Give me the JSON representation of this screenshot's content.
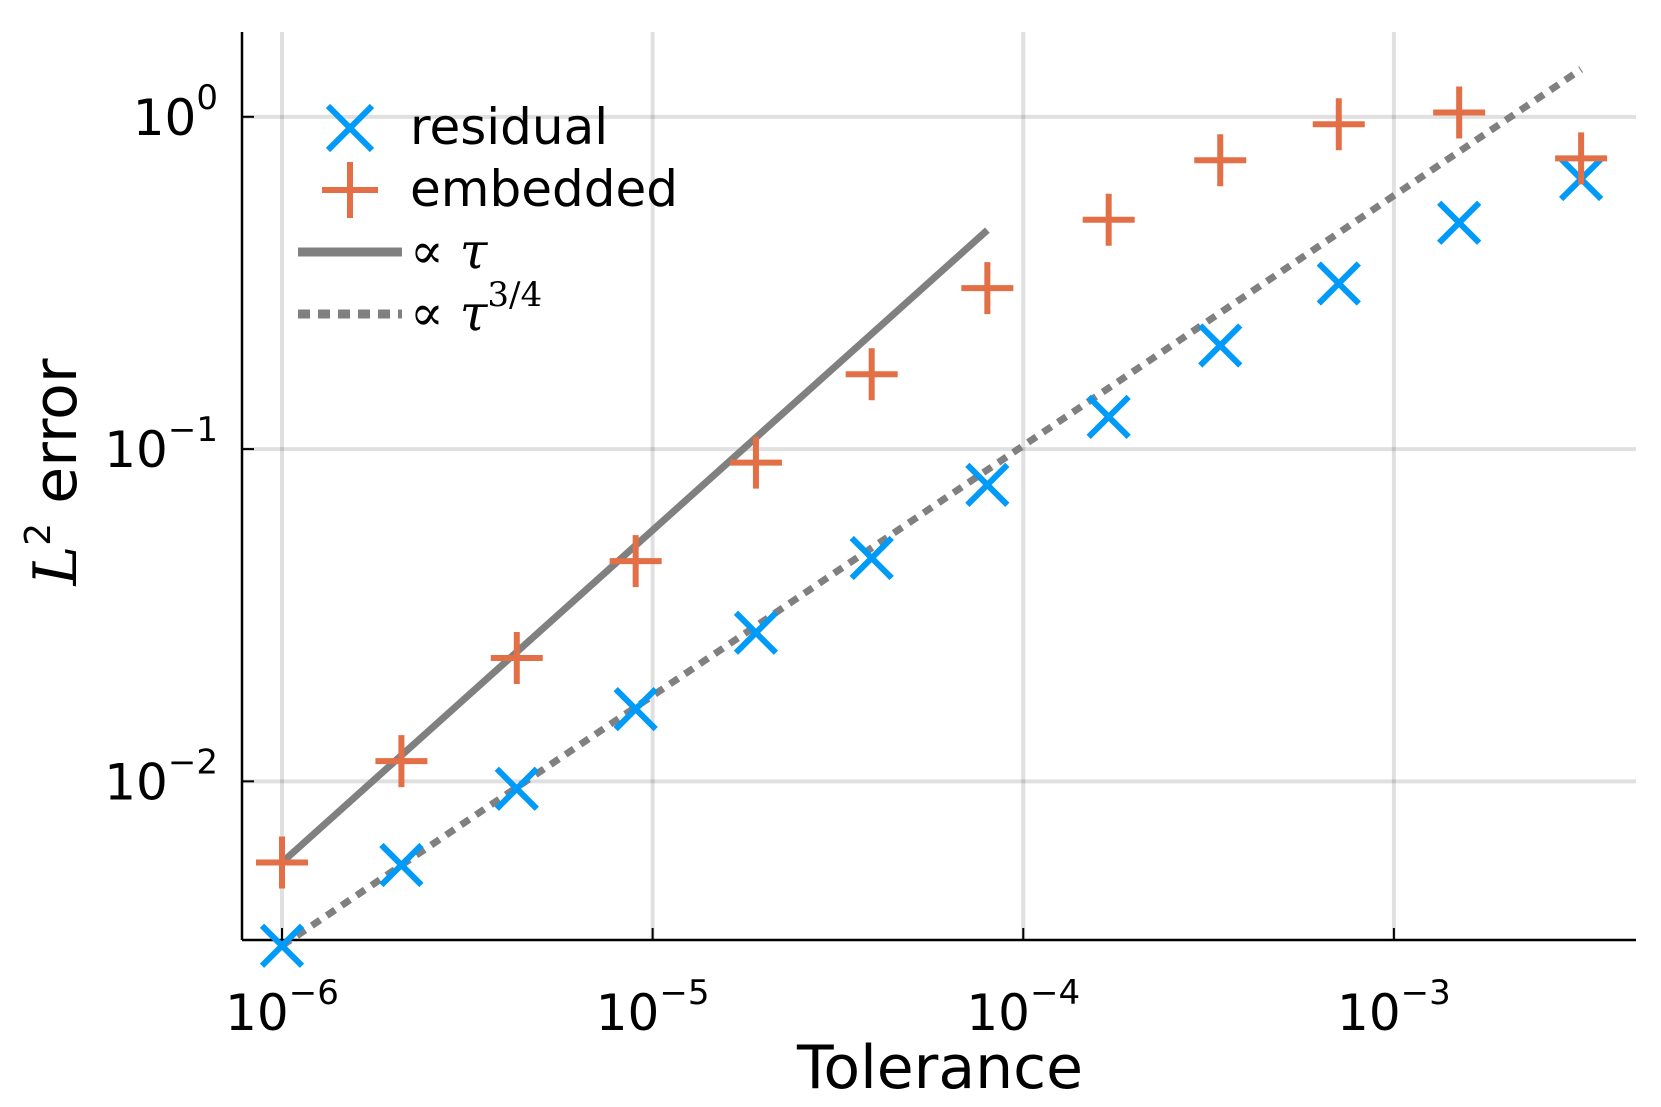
{
  "chart_data": {
    "type": "scatter",
    "x_scale": "log",
    "y_scale": "log",
    "xlabel": "Tolerance",
    "ylabel": {
      "base": "L",
      "sup": "2",
      "rest": " error"
    },
    "xlim": [
      7.8e-07,
      0.0045
    ],
    "ylim": [
      0.00333,
      1.8
    ],
    "grid": true,
    "legend_position": "top-left",
    "x_ticks": [
      {
        "value": 1e-06,
        "base": "10",
        "exp": "−6"
      },
      {
        "value": 1e-05,
        "base": "10",
        "exp": "−5"
      },
      {
        "value": 0.0001,
        "base": "10",
        "exp": "−4"
      },
      {
        "value": 0.001,
        "base": "10",
        "exp": "−3"
      }
    ],
    "y_ticks": [
      {
        "value": 0.01,
        "base": "10",
        "exp": "−2"
      },
      {
        "value": 0.1,
        "base": "10",
        "exp": "−1"
      },
      {
        "value": 1,
        "base": "10",
        "exp": "0"
      }
    ],
    "series": [
      {
        "name": "residual",
        "marker": "x",
        "color": "#009af9",
        "x": [
          1e-06,
          2.1e-06,
          4.3e-06,
          9e-06,
          1.9e-05,
          3.9e-05,
          8e-05,
          0.00017,
          0.00034,
          0.00071,
          0.0015,
          0.0032
        ],
        "y": [
          0.0032,
          0.0056,
          0.0095,
          0.0165,
          0.028,
          0.047,
          0.078,
          0.125,
          0.205,
          0.315,
          0.48,
          0.65
        ]
      },
      {
        "name": "embedded",
        "marker": "+",
        "color": "#e26f46",
        "x": [
          1e-06,
          2.1e-06,
          4.3e-06,
          9e-06,
          1.9e-05,
          3.9e-05,
          8e-05,
          0.00017,
          0.00034,
          0.00071,
          0.0015,
          0.0032
        ],
        "y": [
          0.0057,
          0.0115,
          0.0235,
          0.046,
          0.091,
          0.168,
          0.305,
          0.49,
          0.74,
          0.95,
          1.03,
          0.75
        ]
      },
      {
        "name": "∝ τ",
        "line_style": "solid",
        "color": "#808080",
        "x": [
          1e-06,
          8e-05
        ],
        "y": [
          0.0057,
          0.456
        ]
      },
      {
        "name": "∝ τ^(3/4)",
        "line_style": "dotted",
        "color": "#808080",
        "x": [
          1e-06,
          0.0032
        ],
        "y": [
          0.0032,
          1.39
        ]
      }
    ],
    "legend": [
      {
        "label": "residual",
        "marker": "x",
        "color": "#009af9"
      },
      {
        "label": "embedded",
        "marker": "+",
        "color": "#e26f46"
      },
      {
        "label_prefix": "∝ ",
        "label_var": "τ",
        "label_sup": "",
        "line_style": "solid",
        "color": "#808080"
      },
      {
        "label_prefix": "∝ ",
        "label_var": "τ",
        "label_sup": "3/4",
        "line_style": "dotted",
        "color": "#808080"
      }
    ]
  }
}
